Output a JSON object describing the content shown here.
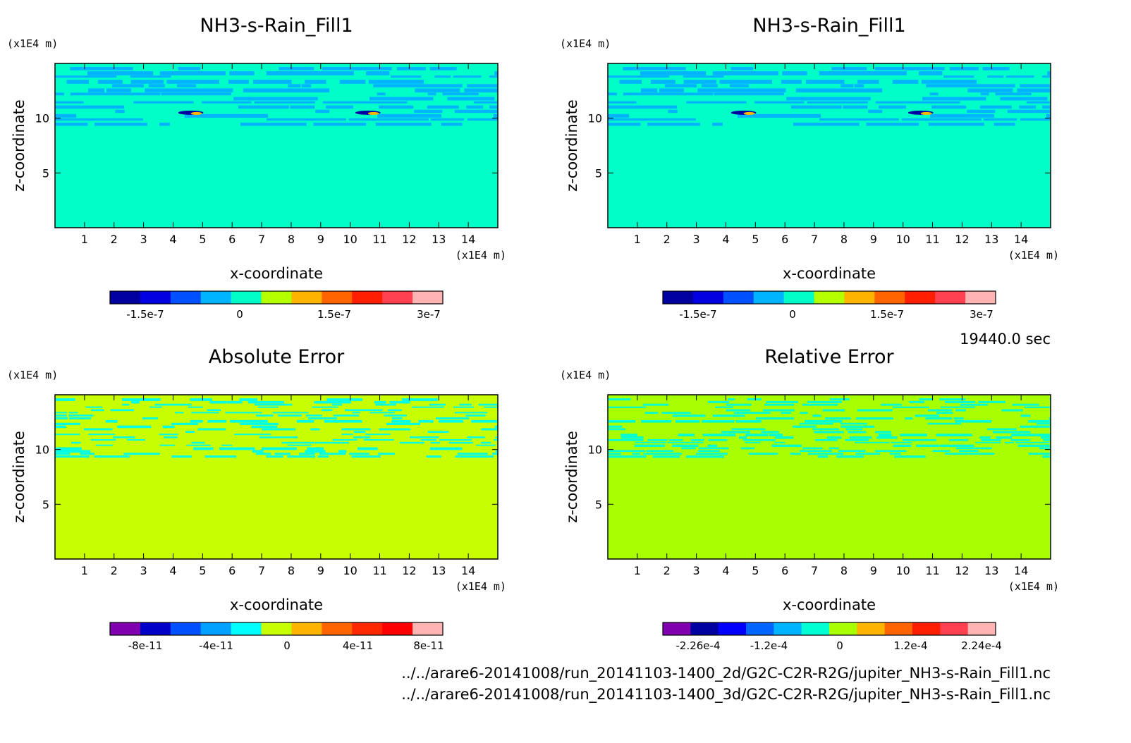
{
  "time_label": "19440.0 sec",
  "files": [
    "../../arare6-20141008/run_20141103-1400_2d/G2C-C2R-R2G/jupiter_NH3-s-Rain_Fill1.nc",
    "../../arare6-20141008/run_20141103-1400_3d/G2C-C2R-R2G/jupiter_NH3-s-Rain_Fill1.nc"
  ],
  "chart_data": [
    {
      "type": "heatmap",
      "title": "NH3-s-Rain_Fill1",
      "xlabel": "x-coordinate",
      "ylabel": "z-coordinate",
      "x_unit": "(x1E4 m)",
      "y_unit": "(x1E4 m)",
      "xlim": [
        0,
        15
      ],
      "ylim": [
        0,
        15
      ],
      "x_ticks": [
        "1",
        "2",
        "3",
        "4",
        "5",
        "6",
        "7",
        "8",
        "9",
        "10",
        "11",
        "12",
        "13",
        "14"
      ],
      "y_ticks": [
        "5",
        "10"
      ],
      "background_color": "#00ffc8",
      "band_color": "#00b4ff",
      "colorbar": {
        "colors": [
          "#0000a0",
          "#0000e0",
          "#0050ff",
          "#00b4ff",
          "#00ffc8",
          "#b4ff00",
          "#ffb400",
          "#ff6400",
          "#ff1e00",
          "#ff4050",
          "#ffb4b4"
        ],
        "tick_labels": [
          "-1.5e-7",
          "0",
          "1.5e-7",
          "3e-7"
        ]
      }
    },
    {
      "type": "heatmap",
      "title": "NH3-s-Rain_Fill1",
      "xlabel": "x-coordinate",
      "ylabel": "z-coordinate",
      "x_unit": "(x1E4 m)",
      "y_unit": "(x1E4 m)",
      "xlim": [
        0,
        15
      ],
      "ylim": [
        0,
        15
      ],
      "x_ticks": [
        "1",
        "2",
        "3",
        "4",
        "5",
        "6",
        "7",
        "8",
        "9",
        "10",
        "11",
        "12",
        "13",
        "14"
      ],
      "y_ticks": [
        "5",
        "10"
      ],
      "background_color": "#00ffc8",
      "band_color": "#00b4ff",
      "colorbar": {
        "colors": [
          "#0000a0",
          "#0000e0",
          "#0050ff",
          "#00b4ff",
          "#00ffc8",
          "#b4ff00",
          "#ffb400",
          "#ff6400",
          "#ff1e00",
          "#ff4050",
          "#ffb4b4"
        ],
        "tick_labels": [
          "-1.5e-7",
          "0",
          "1.5e-7",
          "3e-7"
        ]
      }
    },
    {
      "type": "heatmap",
      "title": "Absolute Error",
      "xlabel": "x-coordinate",
      "ylabel": "z-coordinate",
      "x_unit": "(x1E4 m)",
      "y_unit": "(x1E4 m)",
      "xlim": [
        0,
        15
      ],
      "ylim": [
        0,
        15
      ],
      "x_ticks": [
        "1",
        "2",
        "3",
        "4",
        "5",
        "6",
        "7",
        "8",
        "9",
        "10",
        "11",
        "12",
        "13",
        "14"
      ],
      "y_ticks": [
        "5",
        "10"
      ],
      "background_color": "#c8ff00",
      "band_color": "#00ffe6",
      "colorbar": {
        "colors": [
          "#8000b0",
          "#0000c8",
          "#0050ff",
          "#00a0ff",
          "#00ffff",
          "#c8ff00",
          "#ffb400",
          "#ff6400",
          "#ff2800",
          "#ff0000",
          "#ffb4b4"
        ],
        "tick_labels": [
          "-8e-11",
          "-4e-11",
          "0",
          "4e-11",
          "8e-11"
        ]
      }
    },
    {
      "type": "heatmap",
      "title": "Relative Error",
      "xlabel": "x-coordinate",
      "ylabel": "z-coordinate",
      "x_unit": "(x1E4 m)",
      "y_unit": "(x1E4 m)",
      "xlim": [
        0,
        15
      ],
      "ylim": [
        0,
        15
      ],
      "x_ticks": [
        "1",
        "2",
        "3",
        "4",
        "5",
        "6",
        "7",
        "8",
        "9",
        "10",
        "11",
        "12",
        "13",
        "14"
      ],
      "y_ticks": [
        "5",
        "10"
      ],
      "background_color": "#a8ff00",
      "band_color": "#00ffd2",
      "colorbar": {
        "colors": [
          "#8000b0",
          "#0000a0",
          "#0000ff",
          "#0064ff",
          "#00b4ff",
          "#00ffd2",
          "#a8ff00",
          "#ffb400",
          "#ff6400",
          "#ff1e00",
          "#ff4050",
          "#ffb4b4"
        ],
        "tick_labels": [
          "-2.26e-4",
          "-1.2e-4",
          "0",
          "1.2e-4",
          "2.24e-4"
        ]
      }
    }
  ]
}
